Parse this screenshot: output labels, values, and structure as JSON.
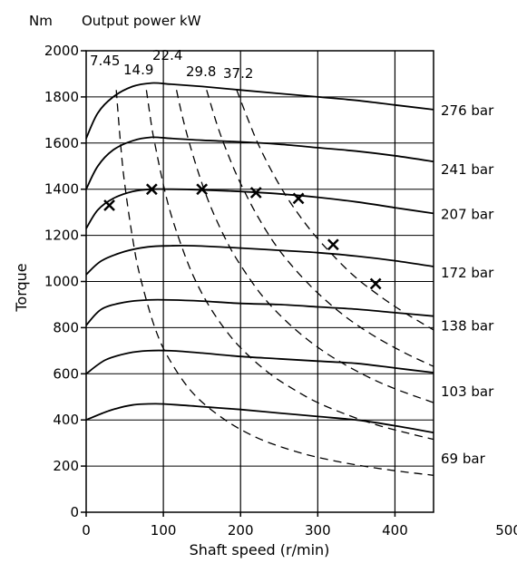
{
  "chart_data": {
    "type": "line",
    "title": "",
    "xlabel": "Shaft speed (r/min)",
    "ylabel": "Torque",
    "y_unit_label": "Nm",
    "power_axis_label": "Output power kW",
    "xlim": [
      0,
      450
    ],
    "ylim": [
      0,
      2000
    ],
    "x_ticks": [
      0,
      100,
      200,
      300,
      400,
      500
    ],
    "y_ticks": [
      0,
      200,
      400,
      600,
      800,
      1000,
      1200,
      1400,
      1600,
      1800,
      2000
    ],
    "grid": true,
    "torque_series": [
      {
        "name": "276 bar",
        "x": [
          0,
          15,
          35,
          60,
          85,
          110,
          150,
          200,
          250,
          300,
          350,
          400,
          450
        ],
        "y": [
          1620,
          1730,
          1800,
          1845,
          1860,
          1855,
          1845,
          1830,
          1815,
          1800,
          1785,
          1765,
          1745
        ]
      },
      {
        "name": "241 bar",
        "x": [
          0,
          15,
          35,
          60,
          85,
          110,
          150,
          200,
          250,
          300,
          350,
          400,
          450
        ],
        "y": [
          1400,
          1500,
          1570,
          1610,
          1625,
          1620,
          1612,
          1605,
          1595,
          1580,
          1565,
          1545,
          1520
        ]
      },
      {
        "name": "207 bar",
        "x": [
          0,
          15,
          35,
          60,
          85,
          110,
          150,
          200,
          250,
          300,
          350,
          400,
          450
        ],
        "y": [
          1230,
          1310,
          1360,
          1390,
          1400,
          1400,
          1397,
          1390,
          1380,
          1365,
          1345,
          1320,
          1295
        ]
      },
      {
        "name": "172 bar",
        "x": [
          0,
          20,
          50,
          80,
          110,
          140,
          200,
          250,
          300,
          350,
          400,
          450
        ],
        "y": [
          1030,
          1090,
          1130,
          1150,
          1155,
          1155,
          1145,
          1135,
          1125,
          1110,
          1090,
          1065
        ]
      },
      {
        "name": "138 bar",
        "x": [
          0,
          20,
          50,
          80,
          110,
          150,
          200,
          250,
          300,
          350,
          400,
          450
        ],
        "y": [
          810,
          880,
          910,
          920,
          920,
          915,
          905,
          900,
          890,
          880,
          865,
          850
        ]
      },
      {
        "name": "103 bar",
        "x": [
          0,
          25,
          55,
          80,
          110,
          150,
          200,
          250,
          300,
          350,
          400,
          450
        ],
        "y": [
          600,
          660,
          690,
          700,
          700,
          690,
          675,
          665,
          655,
          645,
          625,
          605
        ]
      },
      {
        "name": "69 bar",
        "x": [
          0,
          30,
          60,
          90,
          120,
          160,
          200,
          250,
          300,
          350,
          400,
          450
        ],
        "y": [
          400,
          440,
          465,
          470,
          465,
          455,
          445,
          430,
          415,
          400,
          375,
          345
        ]
      }
    ],
    "power_curves_kW": [
      {
        "name": "7.45",
        "x": [
          39,
          45,
          50,
          60,
          70,
          90,
          110,
          140,
          180,
          220,
          260,
          300,
          350,
          400,
          450
        ],
        "y": [
          1830,
          1580,
          1420,
          1190,
          1020,
          790,
          650,
          510,
          400,
          325,
          275,
          238,
          205,
          180,
          160
        ]
      },
      {
        "name": "14.9",
        "x": [
          78,
          85,
          90,
          100,
          110,
          125,
          140,
          160,
          185,
          210,
          240,
          270,
          300,
          340,
          380,
          420,
          450
        ],
        "y": [
          1830,
          1670,
          1580,
          1420,
          1290,
          1140,
          1015,
          890,
          770,
          680,
          595,
          530,
          475,
          420,
          375,
          340,
          316
        ]
      },
      {
        "name": "22.4",
        "x": [
          117,
          125,
          135,
          150,
          165,
          185,
          205,
          230,
          260,
          290,
          320,
          360,
          400,
          450
        ],
        "y": [
          1830,
          1710,
          1585,
          1425,
          1295,
          1155,
          1045,
          930,
          825,
          740,
          670,
          595,
          535,
          475
        ]
      },
      {
        "name": "29.8",
        "x": [
          156,
          170,
          185,
          200,
          220,
          245,
          270,
          300,
          335,
          370,
          410,
          450
        ],
        "y": [
          1830,
          1675,
          1540,
          1425,
          1295,
          1160,
          1055,
          950,
          850,
          770,
          695,
          632
        ]
      },
      {
        "name": "37.2",
        "x": [
          195,
          210,
          225,
          245,
          265,
          290,
          315,
          345,
          375,
          410,
          450
        ],
        "y": [
          1830,
          1700,
          1580,
          1450,
          1340,
          1225,
          1130,
          1030,
          950,
          870,
          790
        ]
      }
    ],
    "markers": [
      {
        "x": 30,
        "y": 1330
      },
      {
        "x": 85,
        "y": 1400
      },
      {
        "x": 150,
        "y": 1400
      },
      {
        "x": 220,
        "y": 1385
      },
      {
        "x": 275,
        "y": 1360
      },
      {
        "x": 320,
        "y": 1160
      },
      {
        "x": 375,
        "y": 990
      }
    ],
    "right_labels": [
      "276 bar",
      "241 bar",
      "207 bar",
      "172 bar",
      "138 bar",
      "103 bar",
      "69 bar"
    ],
    "power_labels": [
      "7.45",
      "14.9",
      "22.4",
      "29.8",
      "37.2"
    ],
    "legend": "none"
  }
}
